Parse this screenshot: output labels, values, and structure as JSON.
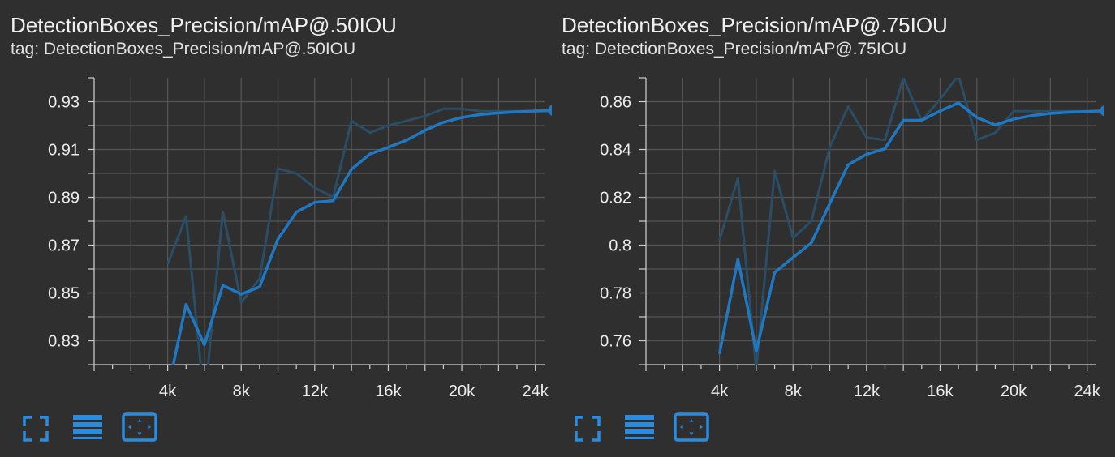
{
  "colors": {
    "background": "#2f2f2f",
    "line": "#1f78c1",
    "raw_line": "#2a4e66",
    "grid": "#555555",
    "axis": "#d0d0d0",
    "text": "#ececec",
    "icon": "#2a8ce0"
  },
  "charts": [
    {
      "title": "DetectionBoxes_Precision/mAP@.50IOU",
      "tag": "tag: DetectionBoxes_Precision/mAP@.50IOU",
      "toolbar": [
        "fullscreen-icon",
        "list-icon",
        "fit-domain-icon"
      ]
    },
    {
      "title": "DetectionBoxes_Precision/mAP@.75IOU",
      "tag": "tag: DetectionBoxes_Precision/mAP@.75IOU",
      "toolbar": [
        "fullscreen-icon",
        "list-icon",
        "fit-domain-icon"
      ]
    }
  ],
  "chart_data": [
    {
      "type": "line",
      "title": "DetectionBoxes_Precision/mAP@.50IOU",
      "xlabel": "",
      "ylabel": "",
      "xlim": [
        0,
        24500
      ],
      "ylim": [
        0.82,
        0.94
      ],
      "x_ticks": [
        4000,
        8000,
        12000,
        16000,
        20000,
        24000
      ],
      "x_tick_labels": [
        "4k",
        "8k",
        "12k",
        "16k",
        "20k",
        "24k"
      ],
      "y_ticks": [
        0.83,
        0.85,
        0.87,
        0.89,
        0.91,
        0.93
      ],
      "y_tick_labels": [
        "0.83",
        "0.85",
        "0.87",
        "0.89",
        "0.91",
        "0.93"
      ],
      "grid": true,
      "series": [
        {
          "role": "smoothed",
          "x": [
            4000,
            5000,
            6000,
            7000,
            8000,
            9000,
            10000,
            11000,
            12000,
            13000,
            14000,
            15000,
            16000,
            17000,
            18000,
            19000,
            20000,
            21000,
            22000,
            23000,
            24000,
            25000
          ],
          "y": [
            0.809,
            0.8452,
            0.8283,
            0.8532,
            0.8495,
            0.8525,
            0.8725,
            0.8838,
            0.8879,
            0.8886,
            0.9017,
            0.9081,
            0.9109,
            0.9139,
            0.918,
            0.9214,
            0.9234,
            0.9246,
            0.9253,
            0.9258,
            0.9261,
            0.9264
          ]
        },
        {
          "role": "raw",
          "x": [
            4000,
            5000,
            6000,
            7000,
            8000,
            9000,
            10000,
            11000,
            12000,
            13000,
            14000,
            15000,
            16000,
            17000,
            18000,
            19000,
            20000,
            21000,
            22000,
            23000,
            24000,
            25000
          ],
          "y": [
            0.862,
            0.882,
            0.804,
            0.884,
            0.846,
            0.856,
            0.902,
            0.9,
            0.894,
            0.89,
            0.922,
            0.917,
            0.92,
            0.922,
            0.924,
            0.927,
            0.927,
            0.926,
            0.926,
            0.926,
            0.926,
            0.926
          ]
        }
      ]
    },
    {
      "type": "line",
      "title": "DetectionBoxes_Precision/mAP@.75IOU",
      "xlabel": "",
      "ylabel": "",
      "xlim": [
        0,
        24500
      ],
      "ylim": [
        0.75,
        0.87
      ],
      "x_ticks": [
        4000,
        8000,
        12000,
        16000,
        20000,
        24000
      ],
      "x_tick_labels": [
        "4k",
        "8k",
        "12k",
        "16k",
        "20k",
        "24k"
      ],
      "y_ticks": [
        0.76,
        0.78,
        0.8,
        0.82,
        0.84,
        0.86
      ],
      "y_tick_labels": [
        "0.76",
        "0.78",
        "0.8",
        "0.82",
        "0.84",
        "0.86"
      ],
      "grid": true,
      "series": [
        {
          "role": "smoothed",
          "x": [
            4000,
            5000,
            6000,
            7000,
            8000,
            9000,
            10000,
            11000,
            12000,
            13000,
            14000,
            15000,
            16000,
            17000,
            18000,
            19000,
            20000,
            21000,
            22000,
            23000,
            24000,
            25000
          ],
          "y": [
            0.7545,
            0.7941,
            0.7557,
            0.7885,
            0.7948,
            0.8009,
            0.8174,
            0.8336,
            0.838,
            0.8403,
            0.8522,
            0.8522,
            0.8561,
            0.8595,
            0.8534,
            0.8503,
            0.8527,
            0.8542,
            0.8551,
            0.8556,
            0.8559,
            0.8562
          ]
        },
        {
          "role": "raw",
          "x": [
            4000,
            5000,
            6000,
            7000,
            8000,
            9000,
            10000,
            11000,
            12000,
            13000,
            14000,
            15000,
            16000,
            17000,
            18000,
            19000,
            20000,
            21000,
            22000,
            23000,
            24000,
            25000
          ],
          "y": [
            0.802,
            0.828,
            0.748,
            0.831,
            0.803,
            0.81,
            0.841,
            0.858,
            0.845,
            0.844,
            0.87,
            0.852,
            0.861,
            0.871,
            0.844,
            0.847,
            0.856,
            0.856,
            0.856,
            0.856,
            0.856,
            0.856
          ]
        }
      ]
    }
  ]
}
